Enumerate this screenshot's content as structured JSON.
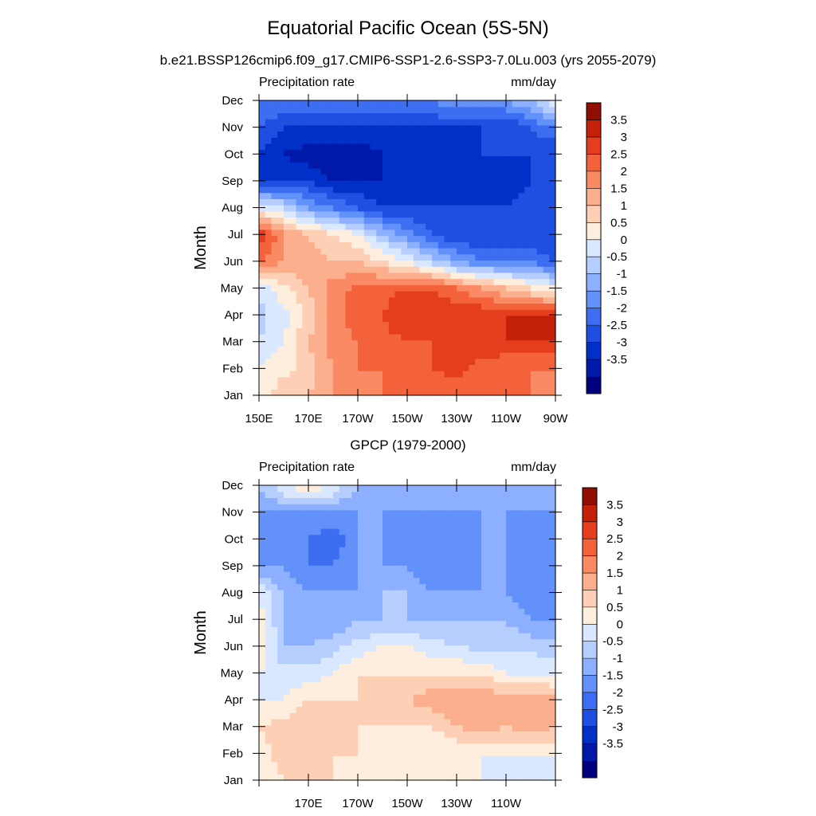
{
  "page": {
    "title": "Equatorial Pacific Ocean (5S-5N)",
    "subtitle": "b.e21.BSSP126cmip6.f09_g17.CMIP6-SSP1-2.6-SSP3-7.0Lu.003 (yrs 2055-2079)"
  },
  "colorbar": {
    "labels": [
      "3.5",
      "3",
      "2.5",
      "2",
      "1.5",
      "1",
      "0.5",
      "0",
      "-0.5",
      "-1",
      "-1.5",
      "-2",
      "-2.5",
      "-3",
      "-3.5"
    ],
    "colors": [
      "#00007f",
      "#0019a8",
      "#0030c8",
      "#1f4fe0",
      "#3d6df0",
      "#6391fa",
      "#8cb0ff",
      "#b5cefe",
      "#d9e8fe",
      "#feeedd",
      "#fdd0b6",
      "#fcaf8c",
      "#f98a63",
      "#f3623b",
      "#e43e1e",
      "#c32208",
      "#900d02"
    ]
  },
  "chart_data": [
    {
      "type": "heatmap",
      "panel_title": "",
      "left_label": "Precipitation rate",
      "right_label": "mm/day",
      "ylabel": "Month",
      "y_ticks": [
        "Jan",
        "Feb",
        "Mar",
        "Apr",
        "May",
        "Jun",
        "Jul",
        "Aug",
        "Sep",
        "Oct",
        "Nov",
        "Dec"
      ],
      "x_ticks": [
        "150E",
        "170E",
        "170W",
        "150W",
        "130W",
        "110W",
        "90W"
      ],
      "x_range": [
        "150E",
        "90W"
      ],
      "y_range": [
        "Jan",
        "Dec"
      ],
      "colorbar_range": [
        -3.5,
        3.5
      ],
      "contour_interval": 0.5,
      "lon": [
        "150E",
        "160E",
        "170E",
        "180",
        "170W",
        "160W",
        "150W",
        "140W",
        "130W",
        "120W",
        "110W",
        "100W",
        "90W"
      ],
      "months": [
        "Jan",
        "Feb",
        "Mar",
        "Apr",
        "May",
        "Jun",
        "Jul",
        "Aug",
        "Sep",
        "Oct",
        "Nov",
        "Dec"
      ],
      "values": [
        [
          0.5,
          1.5,
          1.5,
          2.0,
          2.0,
          2.5,
          2.5,
          2.5,
          2.5,
          2.5,
          2.5,
          2.5,
          2.0
        ],
        [
          0.5,
          0.8,
          1.2,
          2.0,
          2.5,
          2.5,
          2.5,
          3.0,
          3.3,
          2.8,
          2.5,
          2.5,
          2.5
        ],
        [
          0.0,
          0.5,
          1.5,
          2.2,
          2.5,
          2.8,
          3.0,
          3.0,
          3.0,
          3.3,
          3.5,
          3.5,
          3.5
        ],
        [
          -0.2,
          0.3,
          1.2,
          2.3,
          2.8,
          3.0,
          3.5,
          3.5,
          3.5,
          3.5,
          3.5,
          3.5,
          3.5
        ],
        [
          0.2,
          0.8,
          1.5,
          2.3,
          2.6,
          2.8,
          3.0,
          3.0,
          2.5,
          2.0,
          1.5,
          1.0,
          0.5
        ],
        [
          2.5,
          2.0,
          1.8,
          1.5,
          1.5,
          1.0,
          0.5,
          -0.2,
          -1.0,
          -1.5,
          -1.5,
          -1.5,
          -2.0
        ],
        [
          3.5,
          2.0,
          1.5,
          1.0,
          0.5,
          -0.5,
          -1.2,
          -2.0,
          -2.5,
          -2.5,
          -2.5,
          -2.5,
          -2.5
        ],
        [
          0.5,
          0.0,
          -1.0,
          -1.5,
          -2.0,
          -2.5,
          -2.5,
          -2.5,
          -2.5,
          -2.5,
          -2.5,
          -2.0,
          -2.0
        ],
        [
          -2.5,
          -2.5,
          -2.5,
          -3.0,
          -3.0,
          -3.0,
          -3.0,
          -3.0,
          -3.0,
          -3.0,
          -3.0,
          -2.5,
          -2.5
        ],
        [
          -2.5,
          -3.0,
          -3.3,
          -3.5,
          -3.5,
          -3.0,
          -3.0,
          -3.0,
          -3.0,
          -2.5,
          -2.5,
          -2.5,
          -2.5
        ],
        [
          -2.0,
          -2.5,
          -2.5,
          -2.5,
          -2.5,
          -2.5,
          -2.5,
          -2.5,
          -2.5,
          -2.5,
          -2.5,
          -2.0,
          -1.5
        ],
        [
          -1.5,
          -1.5,
          -1.5,
          -1.5,
          -1.5,
          -1.5,
          -1.5,
          -1.5,
          -1.0,
          -1.0,
          -1.0,
          -0.5,
          0.5
        ]
      ]
    },
    {
      "type": "heatmap",
      "panel_title": "GPCP (1979-2000)",
      "left_label": "Precipitation rate",
      "right_label": "mm/day",
      "ylabel": "Month",
      "y_ticks": [
        "Jan",
        "Feb",
        "Mar",
        "Apr",
        "May",
        "Jun",
        "Jul",
        "Aug",
        "Sep",
        "Oct",
        "Nov",
        "Dec"
      ],
      "x_ticks": [
        "170E",
        "170W",
        "150W",
        "130W",
        "110W"
      ],
      "x_range": [
        "150E",
        "90W"
      ],
      "y_range": [
        "Jan",
        "Dec"
      ],
      "colorbar_range": [
        -3.5,
        3.5
      ],
      "contour_interval": 0.5,
      "lon": [
        "150E",
        "160E",
        "170E",
        "180",
        "170W",
        "160W",
        "150W",
        "140W",
        "130W",
        "120W",
        "110W",
        "100W",
        "90W"
      ],
      "months": [
        "Jan",
        "Feb",
        "Mar",
        "Apr",
        "May",
        "Jun",
        "Jul",
        "Aug",
        "Sep",
        "Oct",
        "Nov",
        "Dec"
      ],
      "values": [
        [
          0.5,
          1.0,
          1.5,
          1.0,
          0.5,
          0.5,
          0.5,
          0.5,
          0.5,
          0.5,
          0.3,
          0.2,
          0.2
        ],
        [
          0.8,
          1.2,
          1.5,
          1.0,
          1.0,
          0.5,
          0.5,
          0.5,
          0.5,
          0.5,
          0.5,
          0.5,
          0.5
        ],
        [
          1.0,
          1.2,
          1.5,
          1.2,
          1.0,
          1.0,
          1.0,
          1.0,
          1.5,
          1.8,
          1.5,
          1.8,
          1.5
        ],
        [
          0.5,
          0.5,
          1.0,
          1.0,
          1.0,
          1.0,
          1.5,
          1.8,
          2.0,
          2.0,
          1.8,
          2.0,
          1.8
        ],
        [
          0.5,
          0.2,
          0.2,
          0.5,
          1.0,
          1.0,
          1.0,
          1.0,
          1.0,
          1.0,
          0.5,
          0.5,
          0.2
        ],
        [
          1.0,
          -0.5,
          -0.5,
          -0.2,
          0.2,
          0.5,
          0.5,
          0.2,
          0.0,
          -0.2,
          -0.2,
          -0.2,
          -0.2
        ],
        [
          0.8,
          -0.5,
          -1.0,
          -1.0,
          -0.5,
          -0.5,
          -0.5,
          -0.5,
          -0.5,
          -0.5,
          -0.5,
          -1.0,
          -1.0
        ],
        [
          0.5,
          -0.5,
          -1.0,
          -1.0,
          -1.0,
          -0.5,
          -0.5,
          -1.0,
          -1.0,
          -1.0,
          -1.0,
          -1.5,
          -1.0
        ],
        [
          -1.0,
          -1.0,
          -1.5,
          -1.5,
          -1.0,
          -1.0,
          -1.0,
          -1.5,
          -1.5,
          -1.0,
          -1.0,
          -1.5,
          -1.0
        ],
        [
          -1.0,
          -1.2,
          -1.5,
          -2.0,
          -1.0,
          -1.0,
          -1.5,
          -1.5,
          -1.5,
          -1.0,
          -1.0,
          -1.5,
          -1.0
        ],
        [
          -1.0,
          -1.0,
          -1.0,
          -1.0,
          -1.0,
          -1.0,
          -1.0,
          -1.0,
          -1.0,
          -1.0,
          -1.0,
          -1.0,
          -1.0
        ],
        [
          -0.5,
          0.5,
          1.0,
          0.5,
          -0.5,
          -0.5,
          -0.5,
          -0.5,
          -0.5,
          -0.5,
          -0.5,
          -0.5,
          -0.5
        ]
      ]
    }
  ]
}
